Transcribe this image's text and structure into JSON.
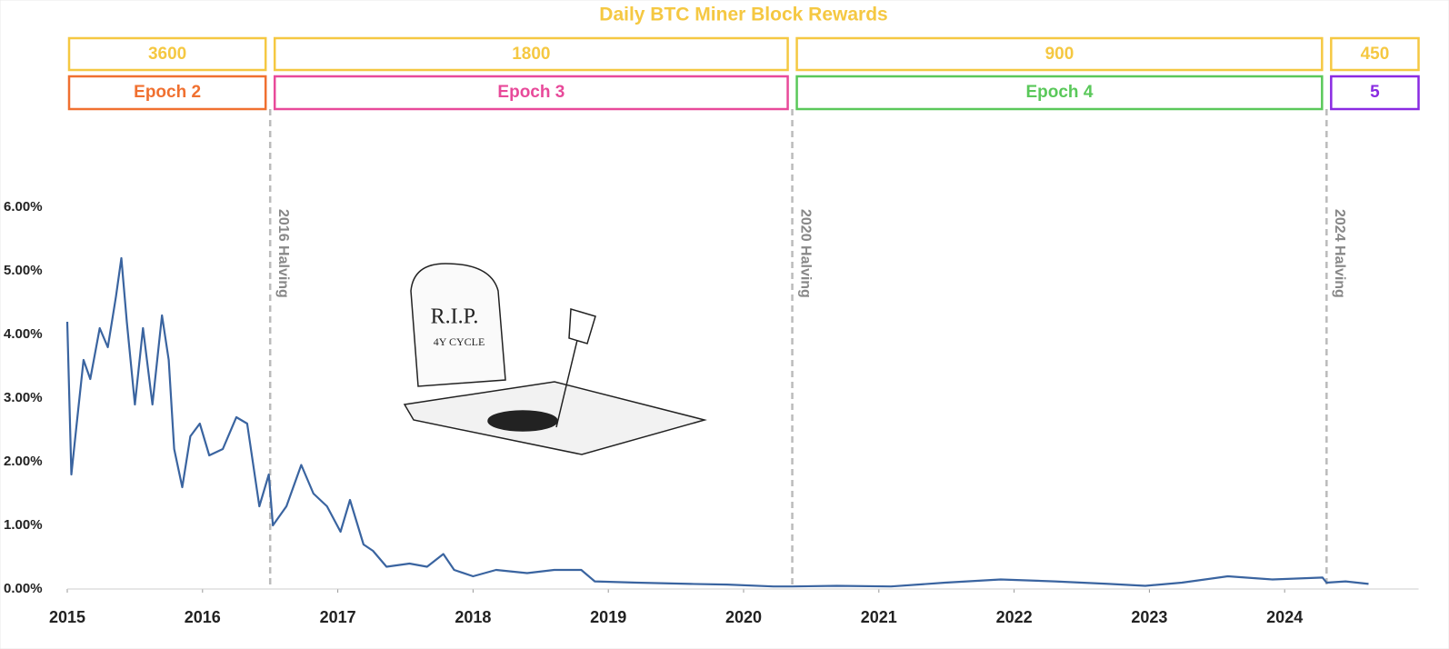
{
  "chart_data": {
    "type": "line",
    "title": "Daily BTC Miner Block Rewards",
    "color": "#3a64a0",
    "x": [
      2015.0,
      2015.03,
      2015.07,
      2015.12,
      2015.17,
      2015.24,
      2015.3,
      2015.36,
      2015.4,
      2015.44,
      2015.5,
      2015.56,
      2015.63,
      2015.7,
      2015.75,
      2015.79,
      2015.85,
      2015.91,
      2015.98,
      2016.05,
      2016.15,
      2016.25,
      2016.33,
      2016.42,
      2016.49,
      2016.52,
      2016.62,
      2016.73,
      2016.82,
      2016.92,
      2017.02,
      2017.09,
      2017.19,
      2017.26,
      2017.36,
      2017.53,
      2017.66,
      2017.78,
      2017.86,
      2018.0,
      2018.17,
      2018.4,
      2018.6,
      2018.8,
      2018.9,
      2019.21,
      2019.61,
      2019.88,
      2020.22,
      2020.36,
      2020.69,
      2021.09,
      2021.49,
      2021.9,
      2022.3,
      2022.7,
      2022.97,
      2023.24,
      2023.58,
      2023.91,
      2024.28,
      2024.31,
      2024.45,
      2024.62
    ],
    "values": [
      4.2,
      1.8,
      2.6,
      3.6,
      3.3,
      4.1,
      3.8,
      4.6,
      5.2,
      4.2,
      2.9,
      4.1,
      2.9,
      4.3,
      3.6,
      2.2,
      1.6,
      2.4,
      2.6,
      2.1,
      2.2,
      2.7,
      2.6,
      1.3,
      1.8,
      1.0,
      1.3,
      1.95,
      1.5,
      1.3,
      0.9,
      1.4,
      0.7,
      0.6,
      0.35,
      0.4,
      0.35,
      0.55,
      0.3,
      0.2,
      0.3,
      0.25,
      0.3,
      0.3,
      0.12,
      0.1,
      0.08,
      0.07,
      0.04,
      0.04,
      0.05,
      0.04,
      0.1,
      0.15,
      0.12,
      0.08,
      0.05,
      0.1,
      0.2,
      0.15,
      0.18,
      0.1,
      0.12,
      0.08
    ],
    "xlim": [
      2015,
      2024.99
    ],
    "xticks": [
      2015,
      2016,
      2017,
      2018,
      2019,
      2020,
      2021,
      2022,
      2023,
      2024
    ],
    "ylim": [
      0,
      6
    ],
    "yticks": [
      {
        "value": 0,
        "label": "0.00%"
      },
      {
        "value": 1,
        "label": "1.00%"
      },
      {
        "value": 2,
        "label": "2.00%"
      },
      {
        "value": 3,
        "label": "3.00%"
      },
      {
        "value": 4,
        "label": "4.00%"
      },
      {
        "value": 5,
        "label": "5.00%"
      },
      {
        "value": 6,
        "label": "6.00%"
      }
    ],
    "halvings": [
      {
        "x": 2016.5,
        "label": "2016 Halving"
      },
      {
        "x": 2020.36,
        "label": "2020 Halving"
      },
      {
        "x": 2024.31,
        "label": "2024 Halving"
      }
    ],
    "epochs": [
      {
        "label": "Epoch 2",
        "reward": 3600,
        "color": "#f07030"
      },
      {
        "label": "Epoch 3",
        "reward": 1800,
        "color": "#e84a9a"
      },
      {
        "label": "Epoch 4",
        "reward": 900,
        "color": "#5ac85a"
      },
      {
        "label": "5",
        "reward": 450,
        "color": "#8a2be2"
      }
    ],
    "reward_color": "#f5c842",
    "annotations": [
      "R.I.P.",
      "4Y CYCLE"
    ]
  }
}
